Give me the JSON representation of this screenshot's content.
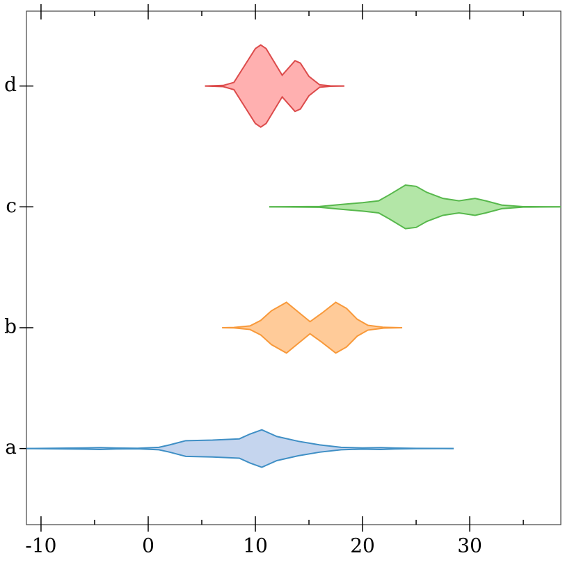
{
  "chart_data": {
    "type": "violin",
    "categories": [
      "a",
      "b",
      "c",
      "d"
    ],
    "xlim": [
      -11.36,
      38.5
    ],
    "xticks": [
      -10,
      0,
      10,
      20,
      30
    ],
    "xminorticks": [
      -5,
      5,
      15,
      25,
      35
    ],
    "ylim": [
      -0.63,
      3.62
    ],
    "series": [
      {
        "name": "a",
        "color": "#3f8fc5",
        "fill": "#c5d5ee",
        "x": [
          -11.36,
          -6,
          -4.5,
          -3,
          -1,
          1,
          2,
          3.5,
          6,
          8.5,
          9.5,
          10.6,
          12,
          14,
          16,
          18,
          20,
          21.7,
          23,
          25,
          28.5
        ],
        "widths": [
          0,
          0.005,
          0.008,
          0.004,
          0.002,
          0.01,
          0.03,
          0.065,
          0.07,
          0.08,
          0.12,
          0.155,
          0.1,
          0.06,
          0.03,
          0.01,
          0.005,
          0.008,
          0.004,
          0.001,
          0
        ]
      },
      {
        "name": "b",
        "color": "#f8993a",
        "fill": "#ffcb99",
        "x": [
          6.9,
          8,
          9.5,
          10.5,
          11.5,
          12.9,
          14,
          15.1,
          16.2,
          17.5,
          18.5,
          19.5,
          20.5,
          22,
          23.7
        ],
        "widths": [
          0,
          0.002,
          0.015,
          0.06,
          0.14,
          0.21,
          0.13,
          0.05,
          0.12,
          0.21,
          0.16,
          0.07,
          0.02,
          0.003,
          0
        ]
      },
      {
        "name": "c",
        "color": "#57b84c",
        "fill": "#b3e6a7",
        "x": [
          11.3,
          16,
          18,
          20,
          21.5,
          22.5,
          24,
          25,
          26,
          27.5,
          29,
          30.5,
          31.5,
          33,
          35,
          38.5
        ],
        "widths": [
          0,
          0.003,
          0.02,
          0.035,
          0.05,
          0.1,
          0.18,
          0.17,
          0.12,
          0.07,
          0.05,
          0.07,
          0.05,
          0.015,
          0.002,
          0
        ]
      },
      {
        "name": "d",
        "color": "#dc4b4b",
        "fill": "#ffb0b0",
        "x": [
          5.3,
          7,
          8,
          9,
          10,
          10.5,
          11,
          12.5,
          13.7,
          14.2,
          15,
          16,
          17,
          18.3
        ],
        "widths": [
          0,
          0.005,
          0.03,
          0.17,
          0.31,
          0.34,
          0.31,
          0.09,
          0.21,
          0.19,
          0.08,
          0.01,
          0.002,
          0
        ]
      }
    ]
  }
}
